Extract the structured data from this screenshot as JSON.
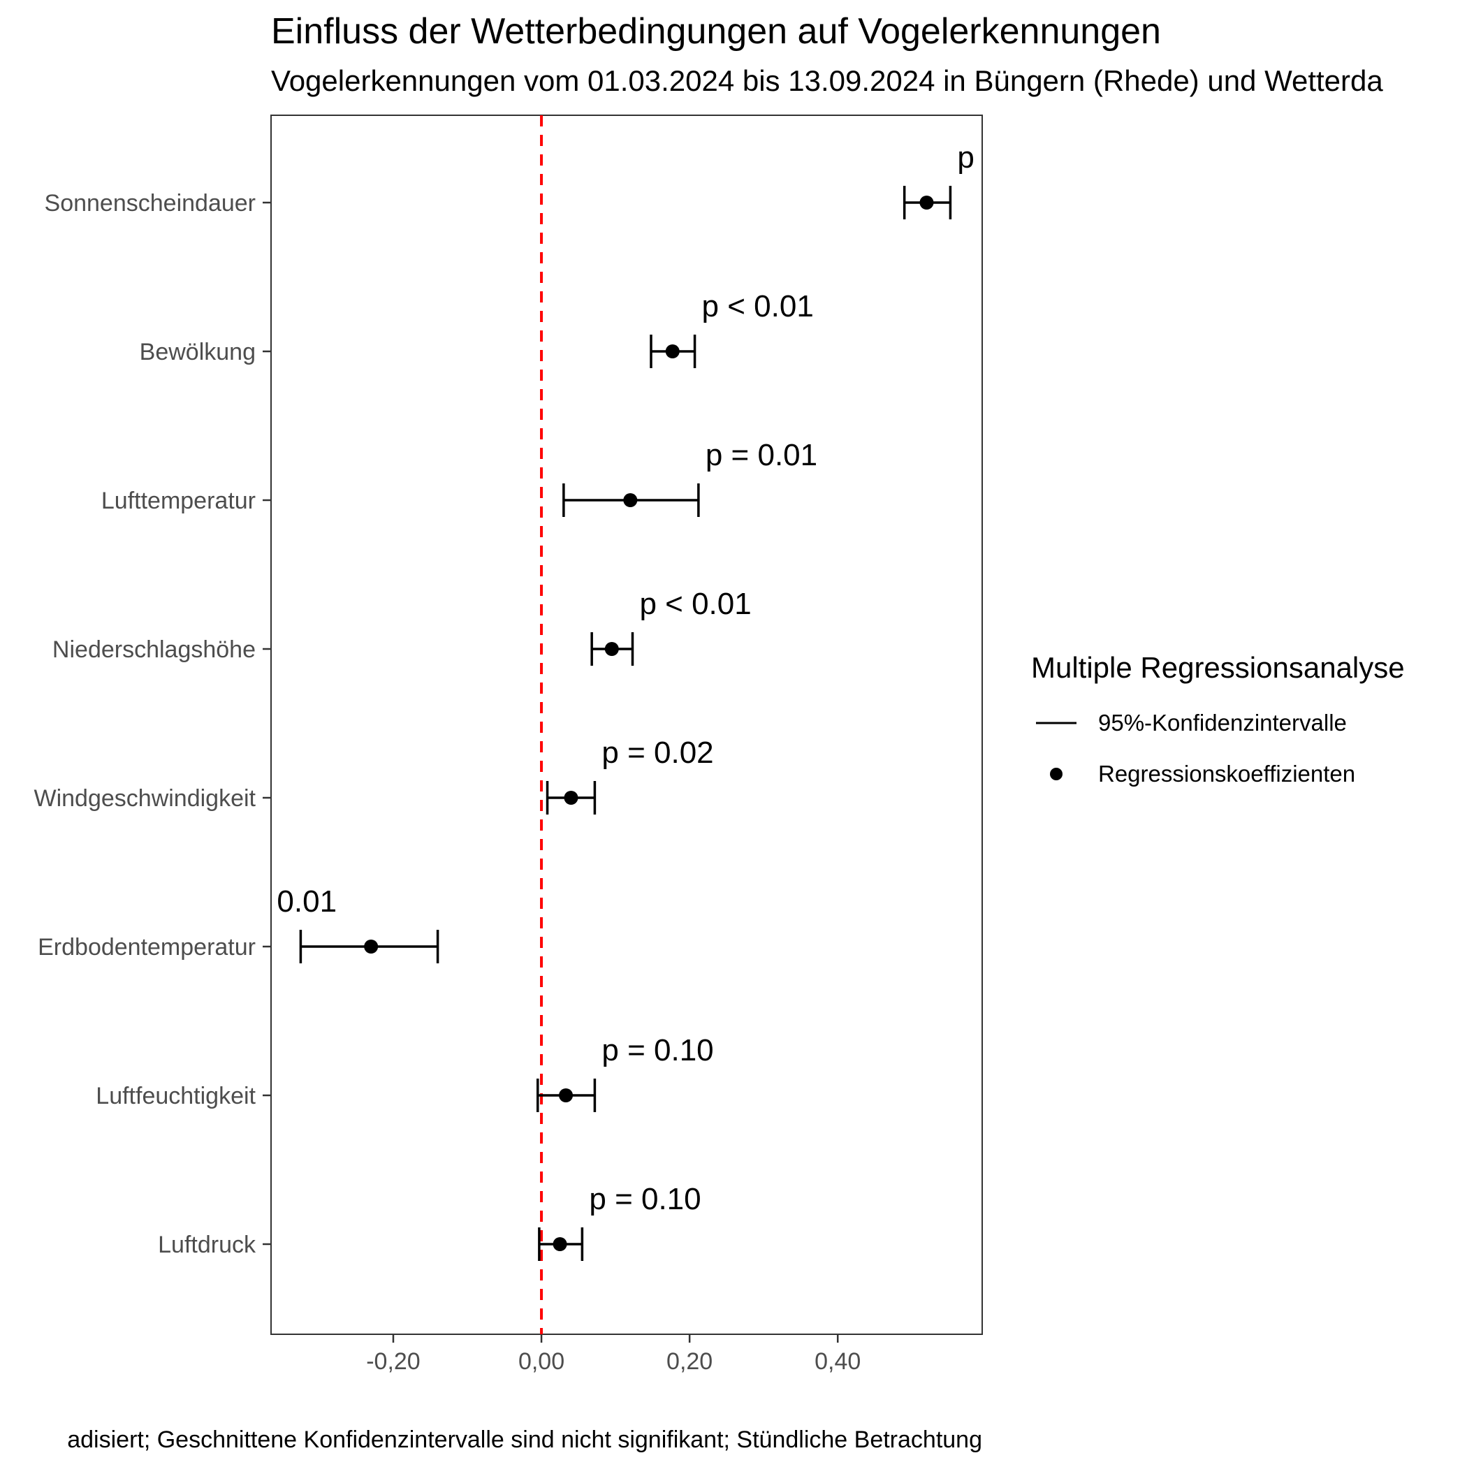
{
  "chart_data": {
    "type": "forest",
    "title": "Einfluss der Wetterbedingungen auf Vogelerkennungen",
    "subtitle": "Vogelerkennungen vom 01.03.2024 bis 13.09.2024 in Büngern (Rhede) und Wetterda",
    "caption": "adisiert; Geschnittene Konfidenzintervalle sind nicht signifikant; Stündliche Betrachtung",
    "xlim": [
      -0.365,
      0.595
    ],
    "xticks": [
      -0.2,
      0.0,
      0.2,
      0.4
    ],
    "xtick_labels": [
      "-0,20",
      "0,00",
      "0,20",
      "0,40"
    ],
    "reference_line": {
      "x": 0.0,
      "color": "#ff0000",
      "style": "dashed"
    },
    "grid": false,
    "legend": {
      "position": "right",
      "title": "Multiple Regressionsanalyse",
      "entries": [
        {
          "label": "95%-Konfidenzintervalle",
          "symbol": "line"
        },
        {
          "label": "Regressionskoeffizienten",
          "symbol": "point"
        }
      ]
    },
    "categories": [
      "Sonnenscheindauer",
      "Bewölkung",
      "Lufttemperatur",
      "Niederschlagshöhe",
      "Windgeschwindigkeit",
      "Erdbodentemperatur",
      "Luftfeuchtigkeit",
      "Luftdruck"
    ],
    "coefficients": [
      0.52,
      0.177,
      0.12,
      0.095,
      0.04,
      -0.23,
      0.033,
      0.025
    ],
    "ci_lower": [
      0.49,
      0.148,
      0.03,
      0.068,
      0.008,
      -0.325,
      -0.005,
      -0.003
    ],
    "ci_upper": [
      0.552,
      0.207,
      0.212,
      0.123,
      0.072,
      -0.14,
      0.072,
      0.055
    ],
    "p_labels": [
      "p",
      "p < 0.01",
      "p = 0.01",
      "p < 0.01",
      "p = 0.02",
      "0.01",
      "p = 0.10",
      "p = 0.10"
    ],
    "colors": {
      "marks": "#000000",
      "reference": "#ff0000",
      "axis_text": "#4d4d4d"
    }
  }
}
